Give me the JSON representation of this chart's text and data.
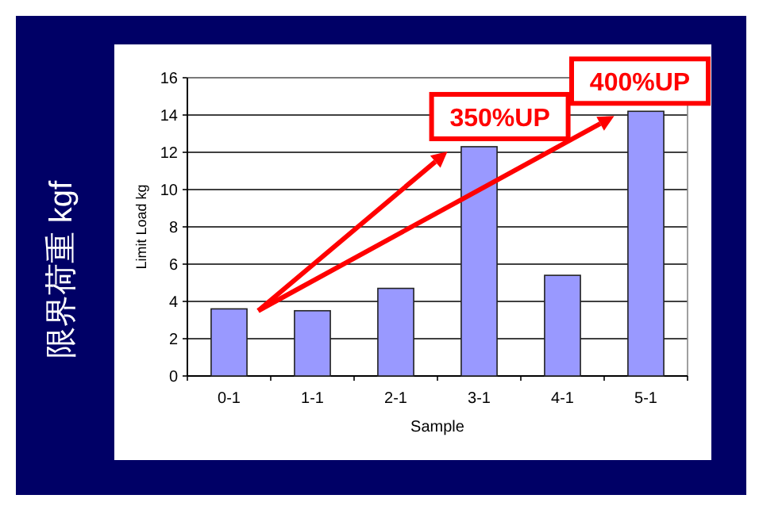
{
  "chart_data": {
    "type": "bar",
    "xlabel": "Sample",
    "ylabel": "Limit Load kg",
    "categories": [
      "0-1",
      "1-1",
      "2-1",
      "3-1",
      "4-1",
      "5-1"
    ],
    "values": [
      3.6,
      3.5,
      4.7,
      12.3,
      5.4,
      14.2
    ],
    "color": "#9999ff",
    "ylim": [
      0,
      16
    ],
    "yticks": [
      0,
      2,
      4,
      6,
      8,
      10,
      12,
      14,
      16
    ],
    "grid": "y",
    "annotations": [
      "限界荷重 kgf",
      {
        "text": "350%UP",
        "x": "3-1",
        "y": 12.3
      },
      {
        "text": "400%UP",
        "x": "5-1",
        "y": 14.2
      }
    ]
  }
}
